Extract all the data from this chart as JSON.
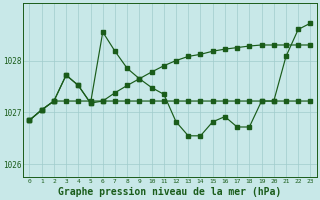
{
  "title": "Graphe pression niveau de la mer (hPa)",
  "background_color": "#c8e8e8",
  "grid_color": "#a0cccc",
  "line_color": "#1a5c1a",
  "hours": [
    0,
    1,
    2,
    3,
    4,
    5,
    6,
    7,
    8,
    9,
    10,
    11,
    12,
    13,
    14,
    15,
    16,
    17,
    18,
    19,
    20,
    21,
    22,
    23
  ],
  "line_wavy": [
    1026.85,
    1027.05,
    1027.22,
    1027.72,
    1027.52,
    1027.18,
    1028.55,
    1028.18,
    1027.85,
    1027.65,
    1027.48,
    1027.35,
    1026.82,
    1026.55,
    1026.55,
    1026.82,
    1026.92,
    1026.72,
    1026.72,
    1027.22,
    1027.22,
    1028.08,
    1028.6,
    1028.72
  ],
  "line_flat": [
    1026.85,
    1027.05,
    1027.22,
    1027.22,
    1027.22,
    1027.22,
    1027.22,
    1027.22,
    1027.22,
    1027.22,
    1027.22,
    1027.22,
    1027.22,
    1027.22,
    1027.22,
    1027.22,
    1027.22,
    1027.22,
    1027.22,
    1027.22,
    1027.22,
    1027.22,
    1027.22,
    1027.22
  ],
  "line_upper": [
    1026.85,
    1027.05,
    1027.22,
    1027.72,
    1027.52,
    1027.18,
    1027.22,
    1027.38,
    1027.52,
    1027.65,
    1027.78,
    1027.9,
    1028.0,
    1028.08,
    1028.12,
    1028.18,
    1028.22,
    1028.25,
    1028.28,
    1028.3,
    1028.3,
    1028.3,
    1028.3,
    1028.3
  ],
  "ylim": [
    1025.75,
    1029.1
  ],
  "yticks": [
    1026,
    1027,
    1028
  ],
  "title_fontsize": 7
}
